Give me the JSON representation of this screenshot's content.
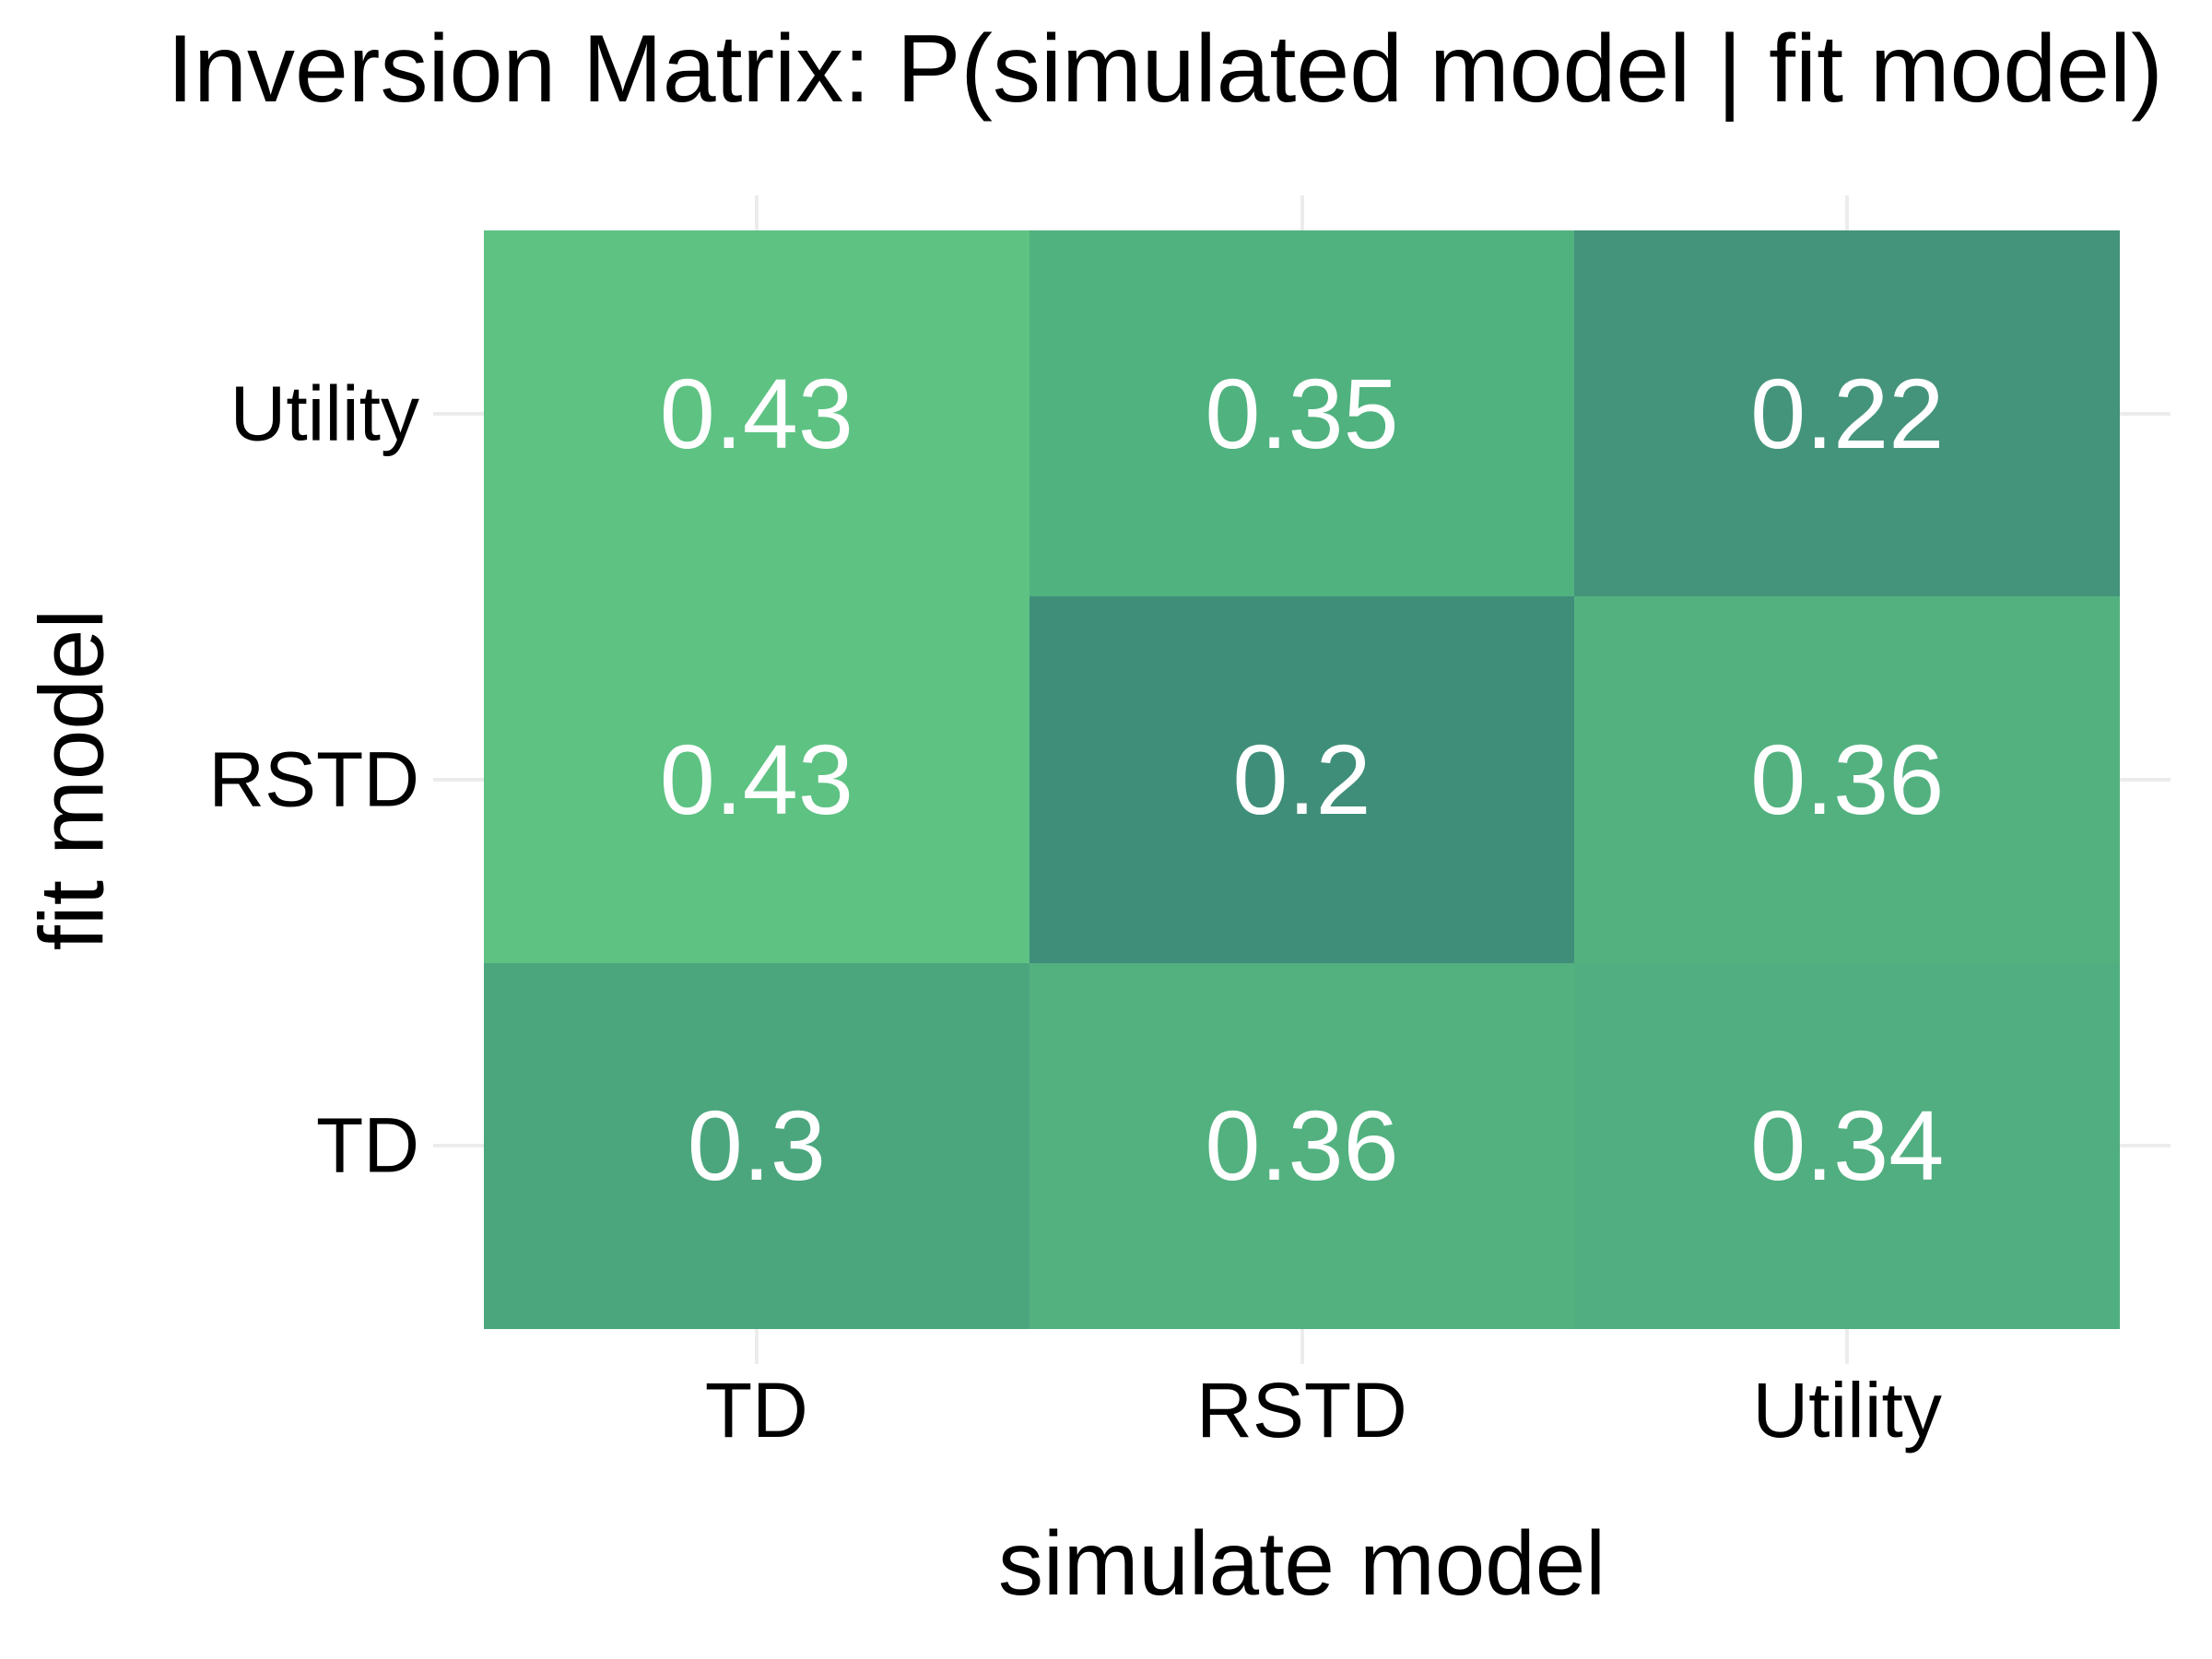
{
  "chart_data": {
    "type": "heatmap",
    "title": "Inversion Matrix: P(simulated model | fit model)",
    "xlabel": "simulate model",
    "ylabel": "fit model",
    "x_categories": [
      "TD",
      "RSTD",
      "Utility"
    ],
    "y_categories": [
      "Utility",
      "RSTD",
      "TD"
    ],
    "values": [
      [
        0.43,
        0.35,
        0.22
      ],
      [
        0.43,
        0.2,
        0.36
      ],
      [
        0.3,
        0.36,
        0.34
      ]
    ],
    "display_values": [
      [
        "0.43",
        "0.35",
        "0.22"
      ],
      [
        "0.43",
        "0.2",
        "0.36"
      ],
      [
        "0.3",
        "0.36",
        "0.34"
      ]
    ],
    "cell_colors": [
      [
        "#5ec283",
        "#50b27f",
        "#44947b"
      ],
      [
        "#5ec283",
        "#3f8e79",
        "#53b180"
      ],
      [
        "#4ba67e",
        "#53b180",
        "#50ae80"
      ]
    ],
    "value_range": {
      "vmin": 0.2,
      "vmax": 0.43
    },
    "colormap": {
      "low": "#3f8e79",
      "high": "#5ec283"
    },
    "value_text_color": "#ffffff",
    "label_color": "#000000",
    "gridline_color": "#ececec",
    "legend_position": "none",
    "grid": "tick gridline stubs outside panel edges"
  }
}
